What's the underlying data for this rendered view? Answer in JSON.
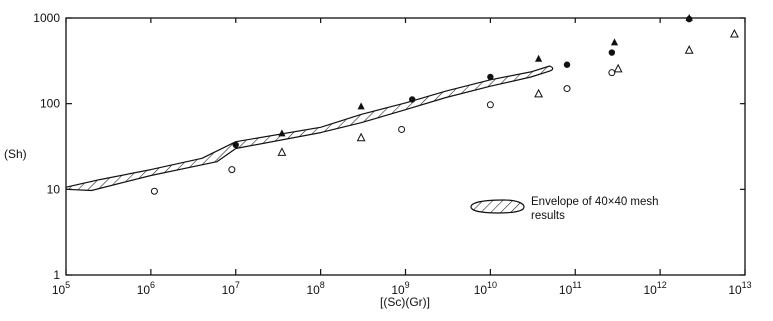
{
  "chart_data": {
    "type": "scatter",
    "title": "",
    "xlabel": "[(Sc)(Gr)]",
    "ylabel": "(Sh)",
    "x_scale": "log",
    "y_scale": "log",
    "xlim": [
      100000,
      10000000000000
    ],
    "ylim": [
      1,
      1000
    ],
    "grid": false,
    "x_ticks": [
      {
        "value": 100000,
        "base": "10",
        "exp": "5"
      },
      {
        "value": 1000000,
        "base": "10",
        "exp": "6"
      },
      {
        "value": 10000000,
        "base": "10",
        "exp": "7"
      },
      {
        "value": 100000000,
        "base": "10",
        "exp": "8"
      },
      {
        "value": 1000000000,
        "base": "10",
        "exp": "9"
      },
      {
        "value": 10000000000,
        "base": "10",
        "exp": "10"
      },
      {
        "value": 100000000000,
        "base": "10",
        "exp": "11"
      },
      {
        "value": 1000000000000,
        "base": "10",
        "exp": "12"
      },
      {
        "value": 10000000000000,
        "base": "10",
        "exp": "13"
      }
    ],
    "y_ticks": [
      {
        "value": 1,
        "label": "1"
      },
      {
        "value": 10,
        "label": "10"
      },
      {
        "value": 100,
        "label": "100"
      },
      {
        "value": 1000,
        "label": "1000"
      }
    ],
    "series": [
      {
        "marker": "filled-circle",
        "points": [
          {
            "x": 10000000,
            "y": 33
          },
          {
            "x": 1200000000,
            "y": 112
          },
          {
            "x": 10000000000,
            "y": 205
          },
          {
            "x": 80000000000,
            "y": 285
          },
          {
            "x": 270000000000,
            "y": 395
          },
          {
            "x": 2200000000000,
            "y": 970
          }
        ]
      },
      {
        "marker": "filled-triangle",
        "points": [
          {
            "x": 35000000,
            "y": 45
          },
          {
            "x": 300000000,
            "y": 93
          },
          {
            "x": 37000000000,
            "y": 335
          },
          {
            "x": 290000000000,
            "y": 520
          },
          {
            "x": 2200000000000,
            "y": 1000
          }
        ]
      },
      {
        "marker": "open-circle",
        "points": [
          {
            "x": 1100000,
            "y": 9.5
          },
          {
            "x": 9000000,
            "y": 17
          },
          {
            "x": 900000000,
            "y": 50
          },
          {
            "x": 10000000000,
            "y": 97
          },
          {
            "x": 80000000000,
            "y": 150
          },
          {
            "x": 270000000000,
            "y": 230
          }
        ]
      },
      {
        "marker": "open-triangle",
        "points": [
          {
            "x": 35000000,
            "y": 27
          },
          {
            "x": 300000000,
            "y": 40
          },
          {
            "x": 37000000000,
            "y": 130
          },
          {
            "x": 320000000000,
            "y": 255
          },
          {
            "x": 2200000000000,
            "y": 420
          },
          {
            "x": 7500000000000,
            "y": 650
          }
        ]
      }
    ],
    "envelope": {
      "label": "Envelope of 40×40 mesh results",
      "upper": [
        {
          "x": 100000,
          "y": 10.6
        },
        {
          "x": 250000,
          "y": 13
        },
        {
          "x": 1000000,
          "y": 17
        },
        {
          "x": 4000000,
          "y": 23
        },
        {
          "x": 10000000,
          "y": 36
        },
        {
          "x": 100000000,
          "y": 53
        },
        {
          "x": 300000000,
          "y": 75
        },
        {
          "x": 1000000000,
          "y": 102
        },
        {
          "x": 3000000000,
          "y": 140
        },
        {
          "x": 10000000000,
          "y": 190
        },
        {
          "x": 30000000000,
          "y": 235
        },
        {
          "x": 50000000000,
          "y": 275
        }
      ],
      "lower": [
        {
          "x": 100000,
          "y": 10
        },
        {
          "x": 200000,
          "y": 9.7
        },
        {
          "x": 1000000,
          "y": 14.5
        },
        {
          "x": 6000000,
          "y": 21
        },
        {
          "x": 10000000,
          "y": 30
        },
        {
          "x": 100000000,
          "y": 46
        },
        {
          "x": 300000000,
          "y": 60
        },
        {
          "x": 1000000000,
          "y": 85
        },
        {
          "x": 3000000000,
          "y": 118
        },
        {
          "x": 10000000000,
          "y": 160
        },
        {
          "x": 30000000000,
          "y": 205
        },
        {
          "x": 50000000000,
          "y": 240
        }
      ]
    },
    "legend": {
      "placement": "inside-right",
      "line1": "Envelope of 40×40 mesh",
      "line2": "results"
    }
  }
}
